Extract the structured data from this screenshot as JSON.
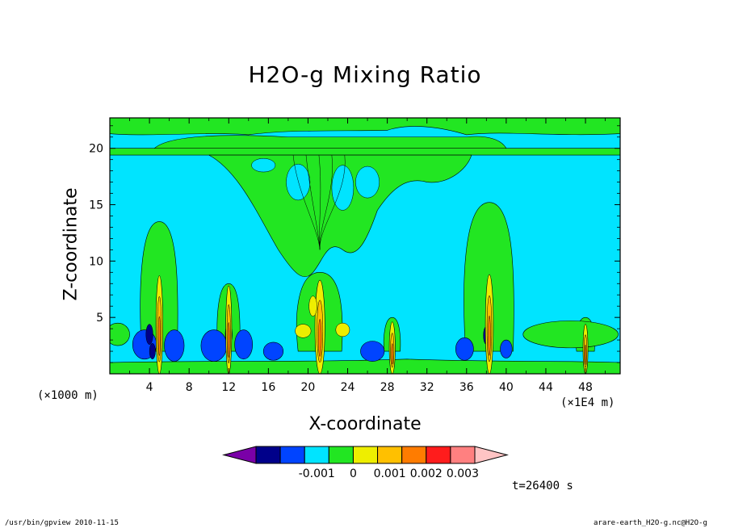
{
  "chart_data": {
    "type": "heatmap",
    "title": "H2O-g Mixing Ratio",
    "xlabel": "X-coordinate",
    "ylabel": "Z-coordinate",
    "x_unit_left": "(×1000 m)",
    "x_unit_right": "(×1E4 m)",
    "xlim": [
      0,
      51.5
    ],
    "ylim": [
      0,
      22.7
    ],
    "x_ticks": [
      4,
      8,
      12,
      16,
      20,
      24,
      28,
      32,
      36,
      40,
      44,
      48
    ],
    "y_ticks": [
      5,
      10,
      15,
      20
    ],
    "colorbar": {
      "colors": [
        "#7a00a8",
        "#00008a",
        "#0044ff",
        "#00e4ff",
        "#22e622",
        "#eeee00",
        "#ffc000",
        "#ff7c00",
        "#ff1c1c",
        "#ff8080",
        "#ffc4c4"
      ],
      "tick_labels": [
        "-0.001",
        "0",
        "0.001",
        "0.002",
        "0.003"
      ]
    },
    "background_color": "#00e4ff",
    "plumes": [
      {
        "x": 5,
        "top": 13.5
      },
      {
        "x": 12,
        "top": 8
      },
      {
        "x": 21,
        "top": 9
      },
      {
        "x": 28,
        "top": 5
      },
      {
        "x": 38,
        "top": 15
      },
      {
        "x": 48,
        "top": 5
      }
    ],
    "time": "t=26400 s"
  },
  "footer": {
    "left": "/usr/bin/gpview   2010-11-15",
    "right": "arare-earth_H2O-g.nc@H2O-g"
  }
}
